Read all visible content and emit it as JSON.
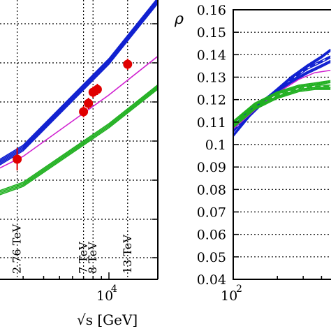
{
  "chart_data": [
    {
      "type": "line",
      "panel": "left",
      "xscale": "log",
      "xlabel": "√s [GeV]",
      "x_tick_labels": [
        {
          "value": 10000,
          "base": "10",
          "exp": "4"
        }
      ],
      "xlim": [
        1000,
        20000
      ],
      "ylabel": "",
      "energy_lines": [
        {
          "label": "2.76 TeV",
          "x": 2760
        },
        {
          "label": "7 TeV",
          "x": 7000
        },
        {
          "label": "8 TeV",
          "x": 8000
        },
        {
          "label": "13 TeV",
          "x": 13000
        }
      ],
      "series": [
        {
          "color": "#1020d0",
          "curves": [
            [
              [
                1000,
                0.3
              ],
              [
                3000,
                0.47
              ],
              [
                10000,
                0.78
              ],
              [
                20000,
                1.0
              ]
            ]
          ]
        },
        {
          "color": "#d020d0",
          "curves": [
            [
              [
                1000,
                0.3
              ],
              [
                3000,
                0.44
              ],
              [
                10000,
                0.66
              ],
              [
                20000,
                0.8
              ]
            ]
          ]
        },
        {
          "color": "#20b020",
          "curves": [
            [
              [
                1000,
                0.24
              ],
              [
                3000,
                0.34
              ],
              [
                10000,
                0.55
              ],
              [
                20000,
                0.69
              ]
            ]
          ]
        }
      ],
      "data_points": [
        {
          "x": 2760,
          "y": 0.43,
          "err": 0.04
        },
        {
          "x": 7000,
          "y": 0.6,
          "err": 0.02
        },
        {
          "x": 7500,
          "y": 0.63,
          "err": 0.02
        },
        {
          "x": 8000,
          "y": 0.67,
          "err": 0.02
        },
        {
          "x": 8500,
          "y": 0.68,
          "err": 0.02
        },
        {
          "x": 13000,
          "y": 0.77,
          "err": 0.02
        }
      ],
      "ylim": [
        0,
        1
      ]
    },
    {
      "type": "line",
      "panel": "right",
      "xscale": "log",
      "ylabel": "ρ",
      "x_tick_labels": [
        {
          "value": 100,
          "base": "10",
          "exp": "2"
        }
      ],
      "xlim": [
        100,
        10000
      ],
      "ylim": [
        0.04,
        0.16
      ],
      "y_ticks": [
        "0.04",
        "0.05",
        "0.06",
        "0.07",
        "0.08",
        "0.09",
        "0.1",
        "0.11",
        "0.12",
        "0.13",
        "0.14",
        "0.15",
        "0.16"
      ],
      "y_tick_values": [
        0.04,
        0.05,
        0.06,
        0.07,
        0.08,
        0.09,
        0.1,
        0.11,
        0.12,
        0.13,
        0.14,
        0.15,
        0.16
      ],
      "series": [
        {
          "color": "#1020d0",
          "curves": [
            [
              [
                100,
                0.104
              ],
              [
                130,
                0.113
              ],
              [
                180,
                0.122
              ],
              [
                250,
                0.13
              ],
              [
                320,
                0.135
              ],
              [
                400,
                0.139
              ],
              [
                460,
                0.142
              ]
            ],
            [
              [
                100,
                0.106
              ],
              [
                130,
                0.114
              ],
              [
                180,
                0.122
              ],
              [
                250,
                0.129
              ],
              [
                320,
                0.134
              ],
              [
                400,
                0.137
              ],
              [
                460,
                0.139
              ]
            ],
            [
              [
                100,
                0.108
              ],
              [
                130,
                0.115
              ],
              [
                180,
                0.122
              ],
              [
                250,
                0.128
              ],
              [
                320,
                0.132
              ],
              [
                400,
                0.135
              ],
              [
                460,
                0.137
              ]
            ]
          ]
        },
        {
          "color": "#d020d0",
          "curves": [
            [
              [
                100,
                0.107
              ],
              [
                150,
                0.117
              ],
              [
                200,
                0.123
              ],
              [
                280,
                0.129
              ],
              [
                360,
                0.132
              ],
              [
                460,
                0.133
              ]
            ]
          ]
        },
        {
          "color": "#20b020",
          "curves": [
            [
              [
                100,
                0.11
              ],
              [
                140,
                0.118
              ],
              [
                200,
                0.123
              ],
              [
                280,
                0.126
              ],
              [
                360,
                0.127
              ],
              [
                460,
                0.128
              ]
            ],
            [
              [
                100,
                0.109
              ],
              [
                140,
                0.117
              ],
              [
                200,
                0.122
              ],
              [
                280,
                0.125
              ],
              [
                360,
                0.126
              ],
              [
                460,
                0.126
              ]
            ],
            [
              [
                100,
                0.108
              ],
              [
                140,
                0.116
              ],
              [
                200,
                0.121
              ],
              [
                280,
                0.124
              ],
              [
                360,
                0.125
              ],
              [
                460,
                0.125
              ]
            ]
          ]
        }
      ]
    }
  ]
}
